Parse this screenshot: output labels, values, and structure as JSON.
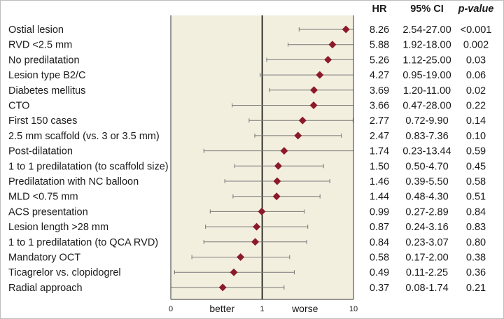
{
  "chart_data": {
    "type": "forest",
    "title": "",
    "columns": {
      "hr": "HR",
      "ci": "95% CI",
      "p": "p-value"
    },
    "axis": {
      "scale": "log",
      "xlim": [
        0.1,
        10
      ],
      "reference": 1,
      "ticks": [
        {
          "value": 0.1,
          "label": "0"
        },
        {
          "value": 1,
          "label": "1"
        },
        {
          "value": 10,
          "label": "10"
        }
      ],
      "left_label": "better",
      "right_label": "worse",
      "colors": {
        "panel": "#f3efdf",
        "marker": "#8b1a2b",
        "whisker": "#777777",
        "reference_line": "#000000"
      }
    },
    "rows": [
      {
        "label": "Ostial lesion",
        "hr": 8.26,
        "lo": 2.54,
        "hi": 27.0,
        "hr_text": "8.26",
        "ci_text": "2.54-27.00",
        "p_text": "<0.001"
      },
      {
        "label": "RVD <2.5 mm",
        "hr": 5.88,
        "lo": 1.92,
        "hi": 18.0,
        "hr_text": "5.88",
        "ci_text": "1.92-18.00",
        "p_text": "0.002"
      },
      {
        "label": "No predilatation",
        "hr": 5.26,
        "lo": 1.12,
        "hi": 25.0,
        "hr_text": "5.26",
        "ci_text": "1.12-25.00",
        "p_text": "0.03"
      },
      {
        "label": "Lesion type B2/C",
        "hr": 4.27,
        "lo": 0.95,
        "hi": 19.0,
        "hr_text": "4.27",
        "ci_text": "0.95-19.00",
        "p_text": "0.06"
      },
      {
        "label": "Diabetes mellitus",
        "hr": 3.69,
        "lo": 1.2,
        "hi": 11.0,
        "hr_text": "3.69",
        "ci_text": "1.20-11.00",
        "p_text": "0.02"
      },
      {
        "label": "CTO",
        "hr": 3.66,
        "lo": 0.47,
        "hi": 28.0,
        "hr_text": "3.66",
        "ci_text": "0.47-28.00",
        "p_text": "0.22"
      },
      {
        "label": "First 150 cases",
        "hr": 2.77,
        "lo": 0.72,
        "hi": 9.9,
        "hr_text": "2.77",
        "ci_text": "0.72-9.90",
        "p_text": "0.14"
      },
      {
        "label": "2.5 mm scaffold (vs. 3 or 3.5 mm)",
        "hr": 2.47,
        "lo": 0.83,
        "hi": 7.36,
        "hr_text": "2.47",
        "ci_text": "0.83-7.36",
        "p_text": "0.10"
      },
      {
        "label": "Post-dilatation",
        "hr": 1.74,
        "lo": 0.23,
        "hi": 13.44,
        "hr_text": "1.74",
        "ci_text": "0.23-13.44",
        "p_text": "0.59"
      },
      {
        "label": "1 to 1 predilatation (to scaffold size)",
        "hr": 1.5,
        "lo": 0.5,
        "hi": 4.7,
        "hr_text": "1.50",
        "ci_text": "0.50-4.70",
        "p_text": "0.45"
      },
      {
        "label": "Predilatation with NC balloon",
        "hr": 1.46,
        "lo": 0.39,
        "hi": 5.5,
        "hr_text": "1.46",
        "ci_text": "0.39-5.50",
        "p_text": "0.58"
      },
      {
        "label": "MLD <0.75 mm",
        "hr": 1.44,
        "lo": 0.48,
        "hi": 4.3,
        "hr_text": "1.44",
        "ci_text": "0.48-4.30",
        "p_text": "0.51"
      },
      {
        "label": "ACS presentation",
        "hr": 0.99,
        "lo": 0.27,
        "hi": 2.89,
        "hr_text": "0.99",
        "ci_text": "0.27-2.89",
        "p_text": "0.84"
      },
      {
        "label": "Lesion length >28 mm",
        "hr": 0.87,
        "lo": 0.24,
        "hi": 3.16,
        "hr_text": "0.87",
        "ci_text": "0.24-3.16",
        "p_text": "0.83"
      },
      {
        "label": "1 to 1 predilatation (to QCA RVD)",
        "hr": 0.84,
        "lo": 0.23,
        "hi": 3.07,
        "hr_text": "0.84",
        "ci_text": "0.23-3.07",
        "p_text": "0.80"
      },
      {
        "label": "Mandatory OCT",
        "hr": 0.58,
        "lo": 0.17,
        "hi": 2.0,
        "hr_text": "0.58",
        "ci_text": "0.17-2.00",
        "p_text": "0.38"
      },
      {
        "label": "Ticagrelor vs. clopidogrel",
        "hr": 0.49,
        "lo": 0.11,
        "hi": 2.25,
        "hr_text": "0.49",
        "ci_text": "0.11-2.25",
        "p_text": "0.36"
      },
      {
        "label": "Radial approach",
        "hr": 0.37,
        "lo": 0.08,
        "hi": 1.74,
        "hr_text": "0.37",
        "ci_text": "0.08-1.74",
        "p_text": "0.21"
      }
    ]
  }
}
